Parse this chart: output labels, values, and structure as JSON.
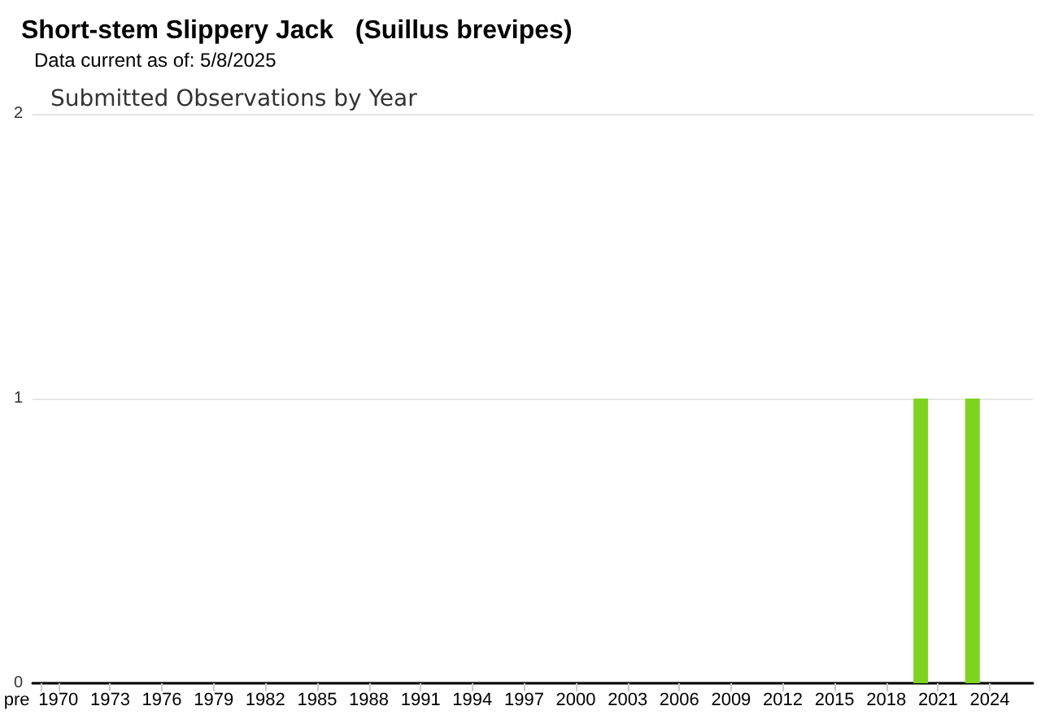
{
  "chart_data": {
    "type": "bar",
    "title": "Short-stem Slippery Jack   (Suillus brevipes)",
    "subtitle": "Data current as of: 5/8/2025",
    "annotations": [
      "Submitted Observations by Year"
    ],
    "categories": [
      "pre",
      "1970",
      null,
      null,
      "1973",
      null,
      null,
      "1976",
      null,
      null,
      "1979",
      null,
      null,
      "1982",
      null,
      null,
      "1985",
      null,
      null,
      "1988",
      null,
      null,
      "1991",
      null,
      null,
      "1994",
      null,
      null,
      "1997",
      null,
      null,
      "2000",
      null,
      null,
      "2003",
      null,
      null,
      "2006",
      null,
      null,
      "2009",
      null,
      null,
      "2012",
      null,
      null,
      "2015",
      null,
      null,
      "2018",
      null,
      null,
      "2021",
      null,
      null,
      "2024",
      null,
      null
    ],
    "values": [
      0,
      0,
      0,
      0,
      0,
      0,
      0,
      0,
      0,
      0,
      0,
      0,
      0,
      0,
      0,
      0,
      0,
      0,
      0,
      0,
      0,
      0,
      0,
      0,
      0,
      0,
      0,
      0,
      0,
      0,
      0,
      0,
      0,
      0,
      0,
      0,
      0,
      0,
      0,
      0,
      0,
      0,
      0,
      0,
      0,
      0,
      0,
      0,
      0,
      0,
      0,
      1,
      0,
      0,
      1,
      0,
      0,
      0
    ],
    "color": "#7ed321",
    "ylim": [
      0,
      2
    ],
    "yticks": [
      0,
      1,
      2
    ],
    "grid": "y"
  }
}
